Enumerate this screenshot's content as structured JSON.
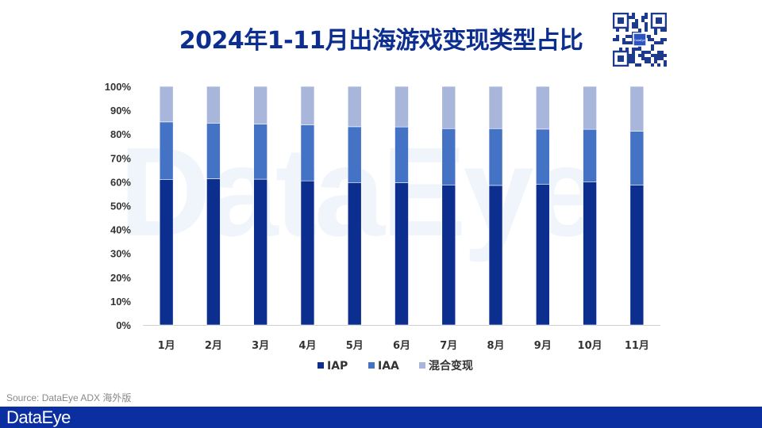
{
  "watermark": "DataEye",
  "source": "Source: DataEye ADX 海外版",
  "footer": {
    "logo": "DataEye"
  },
  "qr": {
    "icon": "qr-code-icon",
    "center_label": "DataEye"
  },
  "colors": {
    "IAP": "#0b2e8f",
    "IAA": "#4472c4",
    "混合变现": "#a9b6dc",
    "footer": "#0b2ea0",
    "title": "#0b2e8f"
  },
  "chart_data": {
    "type": "bar",
    "stacked": true,
    "title": "2024年1-11月出海游戏变现类型占比",
    "categories": [
      "1月",
      "2月",
      "3月",
      "4月",
      "5月",
      "6月",
      "7月",
      "8月",
      "9月",
      "10月",
      "11月"
    ],
    "series": [
      {
        "name": "IAP",
        "values": [
          60.9,
          61.3,
          61.1,
          60.4,
          59.7,
          59.6,
          58.7,
          58.5,
          58.9,
          59.9,
          58.6
        ]
      },
      {
        "name": "IAA",
        "values": [
          24.2,
          23.3,
          23.1,
          23.5,
          23.4,
          23.4,
          23.6,
          23.8,
          23.2,
          22.1,
          22.6
        ]
      },
      {
        "name": "混合变现",
        "values": [
          14.9,
          15.4,
          15.8,
          16.1,
          16.9,
          17.0,
          17.7,
          17.7,
          17.9,
          18.0,
          18.8
        ]
      }
    ],
    "ylim": [
      0,
      100
    ],
    "yticks": [
      "0%",
      "10%",
      "20%",
      "30%",
      "40%",
      "50%",
      "60%",
      "70%",
      "80%",
      "90%",
      "100%"
    ],
    "grid": false,
    "legend": "bottom"
  }
}
